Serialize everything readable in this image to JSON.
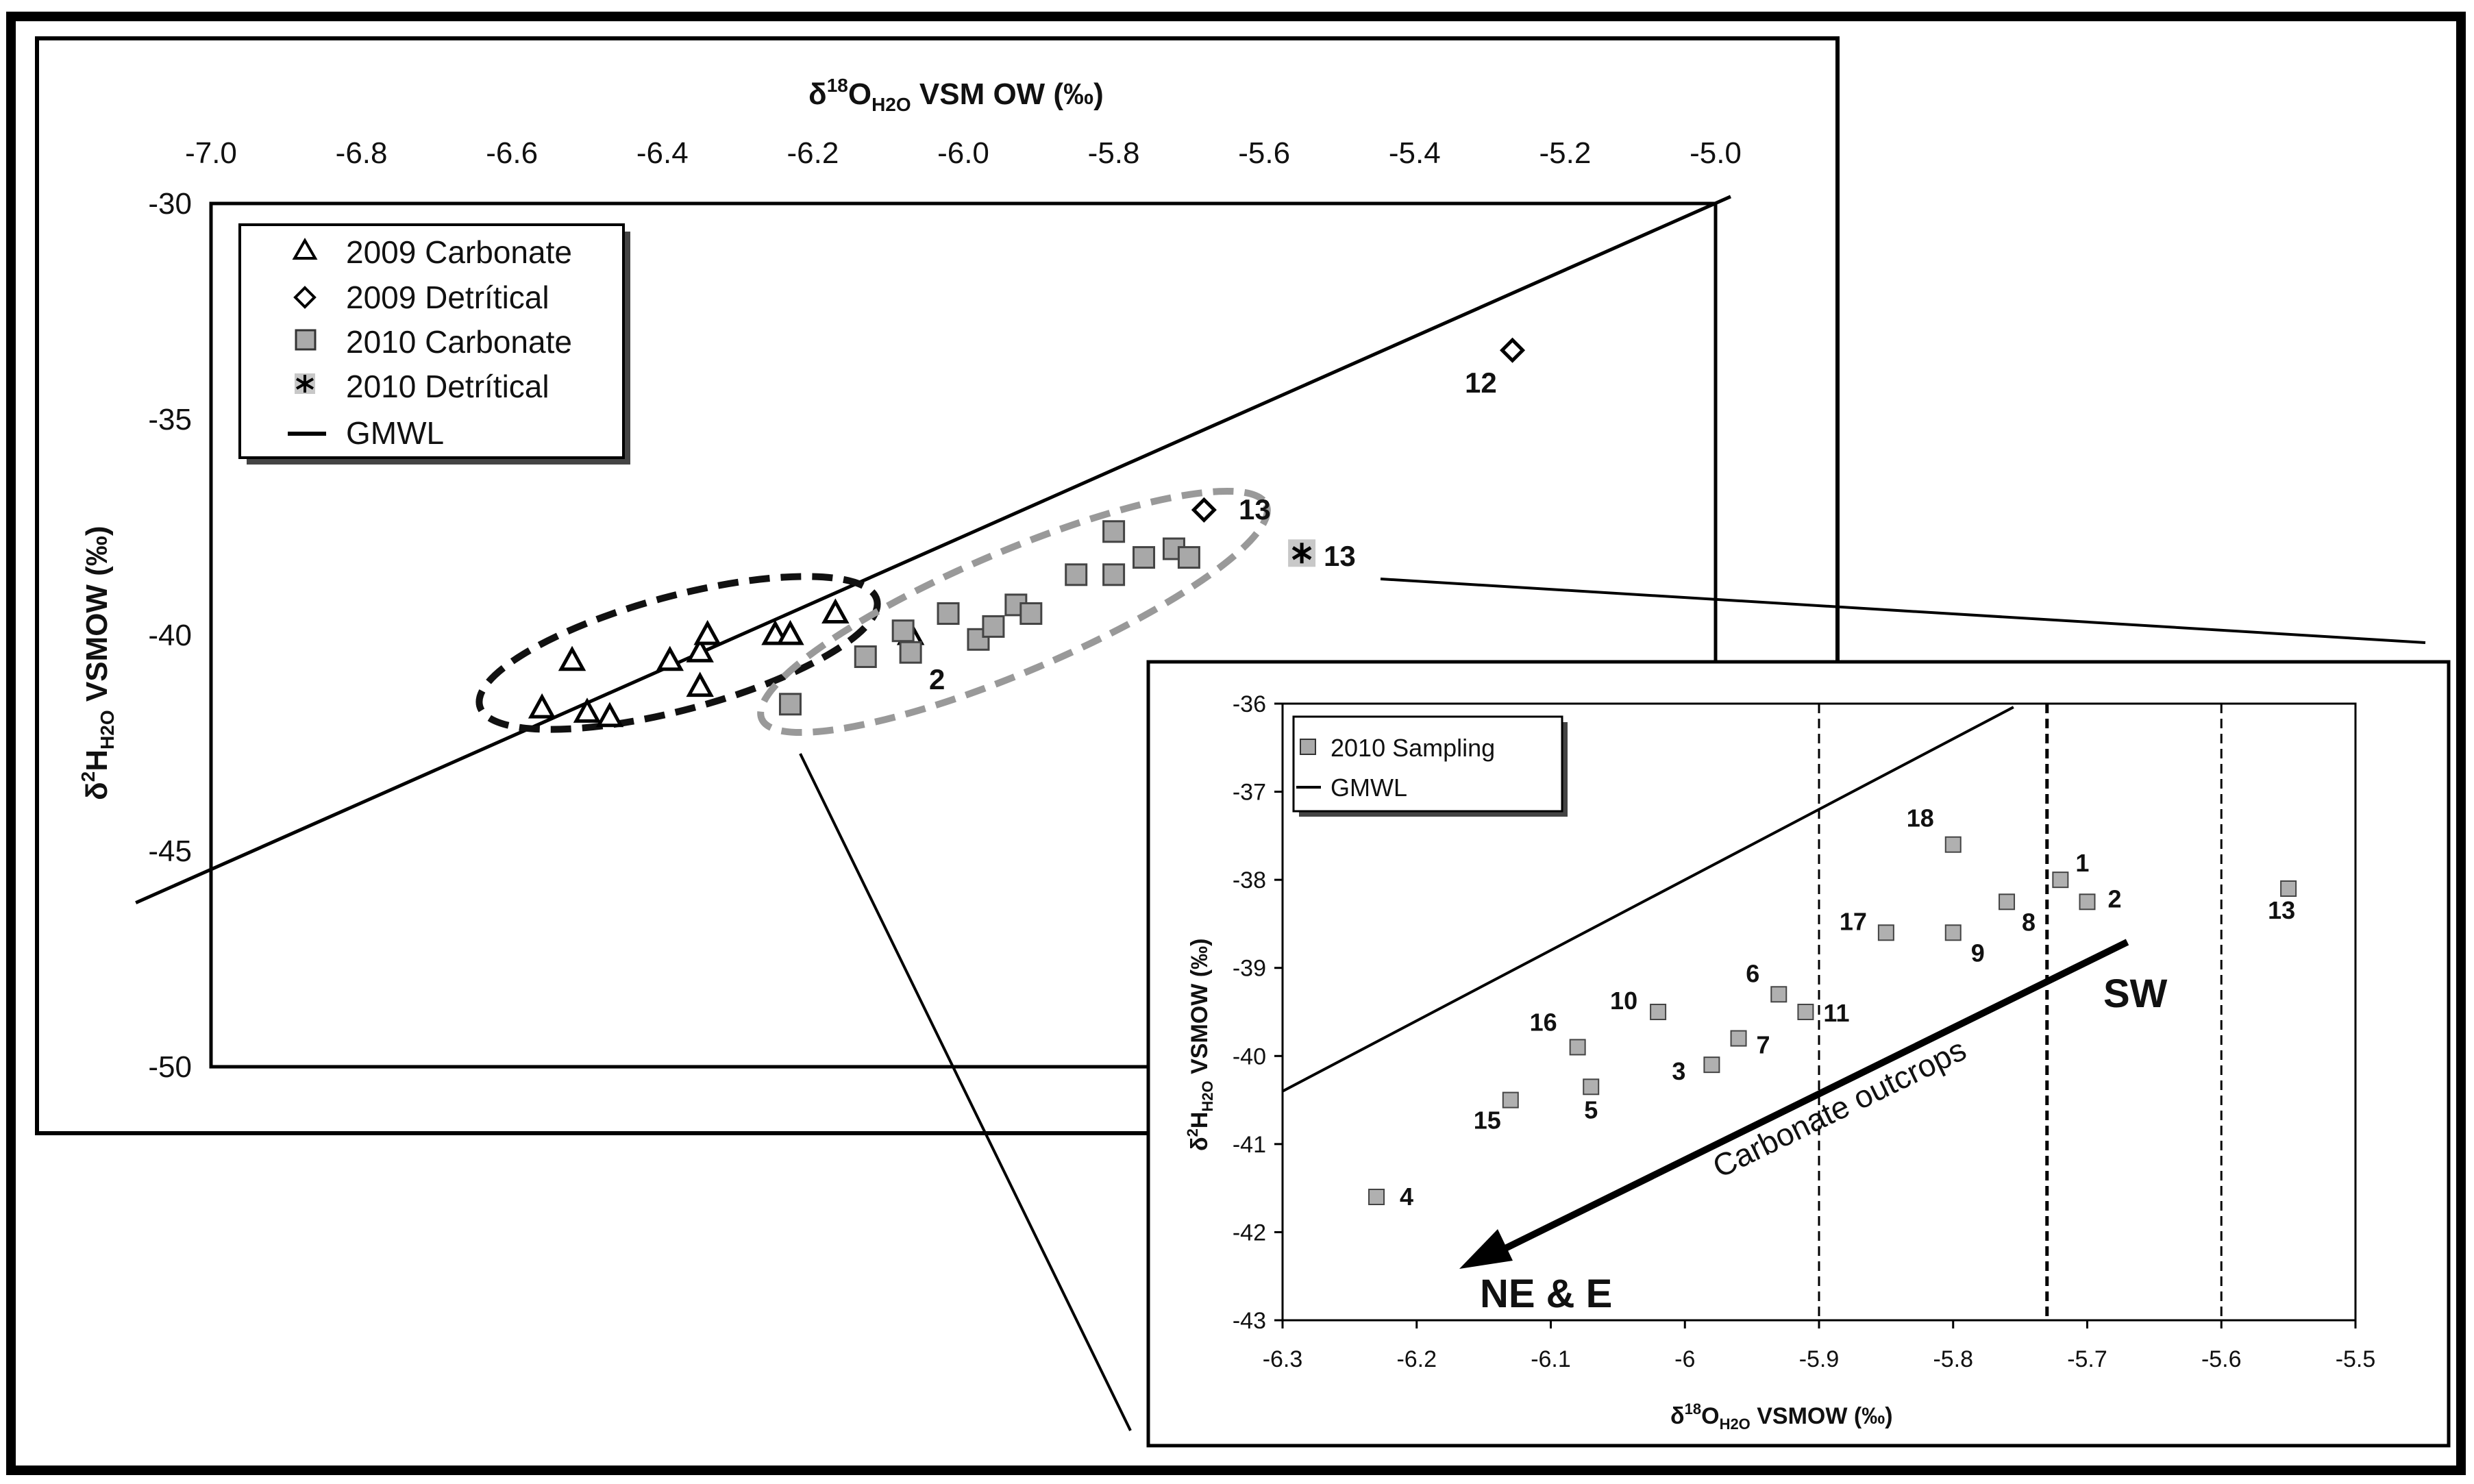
{
  "chart_data": [
    {
      "type": "scatter",
      "title": "",
      "xlabel": "δ18OH2O VSMOW (‰)",
      "ylabel": "δ2HH2O VSMOW (‰)",
      "xlim": [
        -7.0,
        -5.0
      ],
      "ylim": [
        -50,
        -30
      ],
      "x_axis_position": "top",
      "x_ticks": [
        "-7.0",
        "-6.8",
        "-6.6",
        "-6.4",
        "-6.2",
        "-6.0",
        "-5.8",
        "-5.6",
        "-5.4",
        "-5.2",
        "-5.0"
      ],
      "y_ticks": [
        "-30",
        "-35",
        "-40",
        "-45",
        "-50"
      ],
      "legend_position": "top-left",
      "series": [
        {
          "name": "2009 Carbonate",
          "marker": "triangle",
          "points": [
            {
              "x": -6.56,
              "y": -41.7
            },
            {
              "x": -6.52,
              "y": -40.6
            },
            {
              "x": -6.5,
              "y": -41.8
            },
            {
              "x": -6.47,
              "y": -41.9
            },
            {
              "x": -6.39,
              "y": -40.6
            },
            {
              "x": -6.35,
              "y": -40.4
            },
            {
              "x": -6.34,
              "y": -40.0
            },
            {
              "x": -6.35,
              "y": -41.2
            },
            {
              "x": -6.25,
              "y": -40.0
            },
            {
              "x": -6.23,
              "y": -40.0
            },
            {
              "x": -6.17,
              "y": -39.5
            },
            {
              "x": -6.07,
              "y": -40.0
            }
          ]
        },
        {
          "name": "2009 Detrítical",
          "marker": "diamond",
          "points": [
            {
              "x": -5.27,
              "y": -33.4
            },
            {
              "x": -5.68,
              "y": -37.1
            }
          ]
        },
        {
          "name": "2010 Carbonate",
          "marker": "square",
          "points": [
            {
              "x": -6.23,
              "y": -41.6
            },
            {
              "x": -6.13,
              "y": -40.5
            },
            {
              "x": -6.08,
              "y": -39.9
            },
            {
              "x": -6.07,
              "y": -40.4
            },
            {
              "x": -6.02,
              "y": -39.5
            },
            {
              "x": -5.98,
              "y": -40.1
            },
            {
              "x": -5.96,
              "y": -39.8
            },
            {
              "x": -5.93,
              "y": -39.3
            },
            {
              "x": -5.91,
              "y": -39.5
            },
            {
              "x": -5.85,
              "y": -38.6
            },
            {
              "x": -5.8,
              "y": -37.6
            },
            {
              "x": -5.8,
              "y": -38.6
            },
            {
              "x": -5.76,
              "y": -38.2
            },
            {
              "x": -5.72,
              "y": -38.0
            },
            {
              "x": -5.7,
              "y": -38.2
            }
          ]
        },
        {
          "name": "2010 Detrítical",
          "marker": "asterisk",
          "points": [
            {
              "x": -5.55,
              "y": -38.1
            }
          ]
        },
        {
          "name": "GMWL",
          "marker": "line",
          "points": [
            {
              "x": -7.1,
              "y": -46.2
            },
            {
              "x": -4.98,
              "y": -29.84
            }
          ]
        }
      ],
      "annotations": [
        {
          "text": "12",
          "x": -5.27,
          "y": -33.4
        },
        {
          "text": "13",
          "x": -5.68,
          "y": -37.1
        },
        {
          "text": "13",
          "x": -5.55,
          "y": -38.1
        },
        {
          "text": "2",
          "x": -6.07,
          "y": -40.4
        }
      ]
    },
    {
      "type": "scatter",
      "title": "",
      "xlabel": "δ18OH2O VSMOW (‰)",
      "ylabel": "δ2HH2O VSMOW (‰)",
      "xlim": [
        -6.3,
        -5.5
      ],
      "ylim": [
        -43,
        -36
      ],
      "x_ticks": [
        "-6.3",
        "-6.2",
        "-6.1",
        "-6",
        "-5.9",
        "-5.8",
        "-5.7",
        "-5.6",
        "-5.5"
      ],
      "y_ticks": [
        "-36",
        "-37",
        "-38",
        "-39",
        "-40",
        "-41",
        "-42",
        "-43"
      ],
      "legend_position": "top-left",
      "vertical_lines_x": [
        -5.9,
        -5.73,
        -5.6
      ],
      "series": [
        {
          "name": "2010 Sampling",
          "marker": "square",
          "points": [
            {
              "label": "1",
              "x": -5.72,
              "y": -38.0
            },
            {
              "label": "2",
              "x": -5.7,
              "y": -38.25
            },
            {
              "label": "3",
              "x": -5.98,
              "y": -40.1
            },
            {
              "label": "4",
              "x": -6.23,
              "y": -41.6
            },
            {
              "label": "5",
              "x": -6.07,
              "y": -40.35
            },
            {
              "label": "6",
              "x": -5.93,
              "y": -39.3
            },
            {
              "label": "7",
              "x": -5.96,
              "y": -39.8
            },
            {
              "label": "8",
              "x": -5.76,
              "y": -38.25
            },
            {
              "label": "9",
              "x": -5.8,
              "y": -38.6
            },
            {
              "label": "10",
              "x": -6.02,
              "y": -39.5
            },
            {
              "label": "11",
              "x": -5.91,
              "y": -39.5
            },
            {
              "label": "13",
              "x": -5.55,
              "y": -38.1
            },
            {
              "label": "15",
              "x": -6.13,
              "y": -40.5
            },
            {
              "label": "16",
              "x": -6.08,
              "y": -39.9
            },
            {
              "label": "17",
              "x": -5.85,
              "y": -38.6
            },
            {
              "label": "18",
              "x": -5.8,
              "y": -37.6
            }
          ]
        },
        {
          "name": "GMWL",
          "marker": "line",
          "points": [
            {
              "x": -6.3,
              "y": -40.4
            },
            {
              "x": -5.755,
              "y": -36.04
            }
          ]
        }
      ],
      "annotations": [
        {
          "text": "Carbonate outcrops"
        },
        {
          "text": "SW"
        },
        {
          "text": "NE & E"
        }
      ]
    }
  ]
}
